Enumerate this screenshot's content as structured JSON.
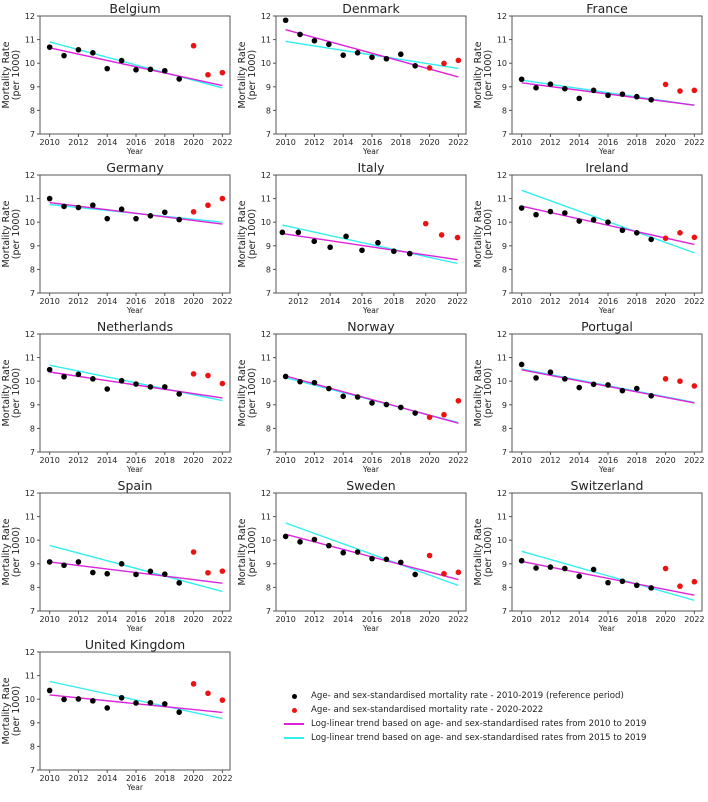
{
  "chart_data": {
    "type": "scatter",
    "ylabel_line1": "Mortality Rate",
    "ylabel_line2": "(per 1000)",
    "xlabel": "Year",
    "ylim": [
      7,
      12
    ],
    "yticks": [
      "7",
      "8",
      "9",
      "10",
      "11",
      "12"
    ],
    "xticks": [
      "2010",
      "2012",
      "2014",
      "2016",
      "2018",
      "2020",
      "2022"
    ],
    "colors": {
      "reference": "#000000",
      "recent": "#ee1111",
      "trend_2010": "#dd22dd",
      "trend_2015": "#33eeee"
    },
    "legend": {
      "position": "bottom-right",
      "items": [
        "Age- and sex-standardised mortality rate - 2010-2019 (reference period)",
        "Age- and sex-standardised mortality rate - 2020-2022",
        "Log-linear trend based on age- and sex-standardised rates from 2010 to 2019",
        "Log-linear trend based on age- and sex-standardised rates from 2015 to 2019"
      ]
    },
    "panels": [
      {
        "title": "Belgium",
        "start": 2010,
        "reference": [
          10.68,
          10.32,
          10.57,
          10.44,
          9.77,
          10.11,
          9.72,
          9.74,
          9.68,
          9.33
        ],
        "recent": [
          10.74,
          9.51,
          9.6
        ],
        "trend_2010": [
          10.65,
          9.05
        ],
        "trend_2015": [
          10.9,
          8.95
        ]
      },
      {
        "title": "Denmark",
        "start": 2010,
        "reference": [
          11.82,
          11.22,
          10.95,
          10.8,
          10.34,
          10.44,
          10.25,
          10.19,
          10.38,
          9.89
        ],
        "recent": [
          9.8,
          9.99,
          10.12
        ],
        "trend_2010": [
          11.42,
          9.42
        ],
        "trend_2015": [
          10.92,
          9.78
        ]
      },
      {
        "title": "France",
        "start": 2010,
        "reference": [
          9.32,
          8.96,
          9.11,
          8.92,
          8.51,
          8.85,
          8.64,
          8.69,
          8.58,
          8.45
        ],
        "recent": [
          9.1,
          8.82,
          8.85
        ],
        "trend_2010": [
          9.17,
          8.22
        ],
        "trend_2015": [
          9.28,
          8.22
        ]
      },
      {
        "title": "Germany",
        "start": 2010,
        "reference": [
          11.0,
          10.67,
          10.62,
          10.72,
          10.15,
          10.55,
          10.15,
          10.27,
          10.42,
          10.11
        ],
        "recent": [
          10.44,
          10.72,
          11.0
        ],
        "trend_2010": [
          10.83,
          9.92
        ],
        "trend_2015": [
          10.75,
          10.0
        ]
      },
      {
        "title": "Italy",
        "start": 2011,
        "reference": [
          9.57,
          9.57,
          9.19,
          8.94,
          9.4,
          8.81,
          9.13,
          8.77,
          8.67
        ],
        "recent": [
          9.94,
          9.46,
          9.35
        ],
        "trend_2010": [
          9.52,
          8.41
        ],
        "trend_2015": [
          9.88,
          8.25
        ]
      },
      {
        "title": "Ireland",
        "start": 2010,
        "reference": [
          10.6,
          10.32,
          10.45,
          10.39,
          10.05,
          10.1,
          10.0,
          9.66,
          9.55,
          9.27
        ],
        "recent": [
          9.32,
          9.55,
          9.36
        ],
        "trend_2010": [
          10.68,
          9.06
        ],
        "trend_2015": [
          11.35,
          8.7
        ]
      },
      {
        "title": "Netherlands",
        "start": 2010,
        "reference": [
          10.49,
          10.19,
          10.29,
          10.1,
          9.67,
          10.02,
          9.88,
          9.76,
          9.76,
          9.46
        ],
        "recent": [
          10.31,
          10.24,
          9.9
        ],
        "trend_2010": [
          10.39,
          9.29
        ],
        "trend_2015": [
          10.68,
          9.18
        ]
      },
      {
        "title": "Norway",
        "start": 2010,
        "reference": [
          10.2,
          9.98,
          9.94,
          9.69,
          9.36,
          9.33,
          9.08,
          9.01,
          8.89,
          8.65
        ],
        "recent": [
          8.47,
          8.58,
          9.17
        ],
        "trend_2010": [
          10.22,
          8.22
        ],
        "trend_2015": [
          10.15,
          8.25
        ]
      },
      {
        "title": "Portugal",
        "start": 2010,
        "reference": [
          10.71,
          10.14,
          10.38,
          10.1,
          9.73,
          9.87,
          9.84,
          9.6,
          9.69,
          9.38
        ],
        "recent": [
          10.1,
          10.0,
          9.8
        ],
        "trend_2010": [
          10.48,
          9.08
        ],
        "trend_2015": [
          10.52,
          9.1
        ]
      },
      {
        "title": "Spain",
        "start": 2010,
        "reference": [
          9.08,
          8.94,
          9.08,
          8.63,
          8.58,
          9.0,
          8.55,
          8.68,
          8.56,
          8.19
        ],
        "recent": [
          9.5,
          8.62,
          8.69
        ],
        "trend_2010": [
          9.08,
          8.18
        ],
        "trend_2015": [
          9.78,
          7.83
        ]
      },
      {
        "title": "Sweden",
        "start": 2010,
        "reference": [
          10.16,
          9.93,
          10.03,
          9.77,
          9.47,
          9.5,
          9.22,
          9.19,
          9.06,
          8.55
        ],
        "recent": [
          9.35,
          8.58,
          8.64
        ],
        "trend_2010": [
          10.25,
          8.33
        ],
        "trend_2015": [
          10.73,
          8.08
        ]
      },
      {
        "title": "Switzerland",
        "start": 2010,
        "reference": [
          9.13,
          8.82,
          8.86,
          8.8,
          8.47,
          8.76,
          8.2,
          8.26,
          8.09,
          7.98
        ],
        "recent": [
          8.8,
          8.05,
          8.24
        ],
        "trend_2010": [
          9.1,
          7.67
        ],
        "trend_2015": [
          9.53,
          7.45
        ]
      },
      {
        "title": "United Kingdom",
        "start": 2010,
        "reference": [
          10.37,
          9.99,
          10.01,
          9.93,
          9.63,
          10.06,
          9.84,
          9.85,
          9.8,
          9.45
        ],
        "recent": [
          10.65,
          10.25,
          9.96
        ],
        "trend_2010": [
          10.18,
          9.44
        ],
        "trend_2015": [
          10.75,
          9.18
        ]
      }
    ]
  }
}
